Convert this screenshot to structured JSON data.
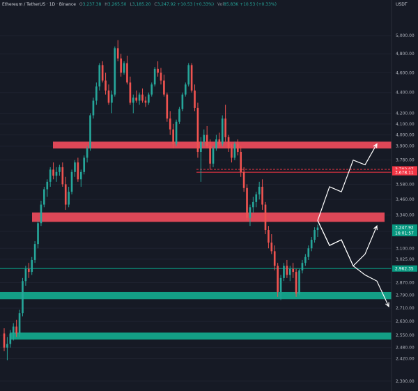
{
  "header": {
    "symbol": "Ethereum / TetherUS · 1D · Binance",
    "open_label": "O",
    "open_value": "3,237.38",
    "high_label": "H",
    "high_value": "3,265.50",
    "low_label": "L",
    "low_value": "3,185.20",
    "close_label": "C",
    "close_value": "3,247.92",
    "change": "+10.53 (+0.33%)",
    "volume_label": "Vol",
    "volume_value": "85.83K",
    "volume_change": "+10.53 (+0.33%)"
  },
  "chart_data": {
    "type": "candlestick",
    "currency": "USDT",
    "y_scale": "log",
    "ylim": [
      2260,
      5250
    ],
    "y_ticks": [
      "5,000.00",
      "4,800.00",
      "4,600.00",
      "4,400.00",
      "4,200.00",
      "4,100.00",
      "4,000.00",
      "3,900.00",
      "3,780.00",
      "3,580.00",
      "3,460.00",
      "3,340.00",
      "3,220.00",
      "3,100.00",
      "3,025.00",
      "2,870.00",
      "2,790.00",
      "2,710.00",
      "2,630.00",
      "2,550.00",
      "2,480.00",
      "2,420.00",
      "2,300.00"
    ],
    "y_tick_values": [
      5000,
      4800,
      4600,
      4400,
      4200,
      4100,
      4000,
      3900,
      3780,
      3580,
      3460,
      3340,
      3220,
      3100,
      3025,
      2870,
      2790,
      2710,
      2630,
      2550,
      2480,
      2420,
      2300
    ],
    "price_labels": [
      {
        "value": 3702.07,
        "text": "3,702.07",
        "color": "#f23645"
      },
      {
        "value": 3678.11,
        "text": "3,678.11",
        "color": "#f23645"
      },
      {
        "value": 3247.92,
        "text": "3,247.92",
        "color": "#089981"
      },
      {
        "value": 3247.92,
        "text": "16:01:57",
        "color": "#089981",
        "offset": 1
      },
      {
        "value": 2962.35,
        "text": "2,962.35",
        "color": "#089981"
      }
    ],
    "zones": [
      {
        "kind": "resistance",
        "from": 3880,
        "to": 3940,
        "color": "#e84a5a"
      },
      {
        "kind": "resistance",
        "from": 3290,
        "to": 3360,
        "color": "#e84a5a"
      },
      {
        "kind": "support",
        "from": 2765,
        "to": 2810,
        "color": "#13a58a"
      },
      {
        "kind": "support",
        "from": 2525,
        "to": 2565,
        "color": "#13a58a"
      }
    ],
    "levels": [
      {
        "value": 3702.07,
        "color": "#f23645",
        "dashed": true
      },
      {
        "value": 3678.11,
        "color": "#f23645",
        "dashed": false
      },
      {
        "value": 2962.35,
        "color": "#089981",
        "dashed": false
      }
    ],
    "colors": {
      "up": "#26a69a",
      "down": "#ef5350"
    },
    "candles": [
      [
        2560,
        2590,
        2460,
        2480
      ],
      [
        2480,
        2540,
        2410,
        2500
      ],
      [
        2500,
        2580,
        2480,
        2560
      ],
      [
        2560,
        2620,
        2520,
        2600
      ],
      [
        2600,
        2640,
        2540,
        2560
      ],
      [
        2560,
        2700,
        2540,
        2680
      ],
      [
        2680,
        2900,
        2660,
        2880
      ],
      [
        2880,
        2980,
        2850,
        2960
      ],
      [
        2960,
        3000,
        2900,
        2940
      ],
      [
        2940,
        3040,
        2920,
        3020
      ],
      [
        3020,
        3150,
        3000,
        3130
      ],
      [
        3130,
        3300,
        3100,
        3280
      ],
      [
        3280,
        3450,
        3260,
        3420
      ],
      [
        3420,
        3560,
        3400,
        3540
      ],
      [
        3540,
        3620,
        3480,
        3600
      ],
      [
        3600,
        3720,
        3560,
        3700
      ],
      [
        3700,
        3760,
        3620,
        3650
      ],
      [
        3650,
        3720,
        3600,
        3680
      ],
      [
        3680,
        3740,
        3650,
        3720
      ],
      [
        3720,
        3760,
        3560,
        3580
      ],
      [
        3580,
        3640,
        3380,
        3420
      ],
      [
        3420,
        3560,
        3400,
        3520
      ],
      [
        3520,
        3700,
        3500,
        3680
      ],
      [
        3680,
        3780,
        3640,
        3760
      ],
      [
        3760,
        3800,
        3600,
        3620
      ],
      [
        3620,
        3700,
        3560,
        3680
      ],
      [
        3680,
        3820,
        3660,
        3800
      ],
      [
        3800,
        3900,
        3760,
        3880
      ],
      [
        3880,
        4200,
        3860,
        4180
      ],
      [
        4180,
        4350,
        4150,
        4320
      ],
      [
        4320,
        4500,
        4280,
        4460
      ],
      [
        4460,
        4700,
        4420,
        4680
      ],
      [
        4680,
        4720,
        4500,
        4520
      ],
      [
        4520,
        4600,
        4380,
        4420
      ],
      [
        4420,
        4480,
        4280,
        4300
      ],
      [
        4300,
        4420,
        4200,
        4380
      ],
      [
        4380,
        4880,
        4360,
        4860
      ],
      [
        4860,
        4950,
        4720,
        4750
      ],
      [
        4750,
        4800,
        4560,
        4600
      ],
      [
        4600,
        4720,
        4580,
        4700
      ],
      [
        4700,
        4780,
        4480,
        4500
      ],
      [
        4500,
        4560,
        4280,
        4300
      ],
      [
        4300,
        4380,
        4200,
        4350
      ],
      [
        4350,
        4420,
        4300,
        4320
      ],
      [
        4320,
        4400,
        4280,
        4380
      ],
      [
        4380,
        4440,
        4300,
        4320
      ],
      [
        4320,
        4360,
        4260,
        4300
      ],
      [
        4300,
        4400,
        4280,
        4380
      ],
      [
        4380,
        4500,
        4360,
        4480
      ],
      [
        4480,
        4660,
        4460,
        4640
      ],
      [
        4640,
        4720,
        4560,
        4600
      ],
      [
        4600,
        4650,
        4480,
        4520
      ],
      [
        4520,
        4580,
        4360,
        4380
      ],
      [
        4380,
        4400,
        4120,
        4150
      ],
      [
        4150,
        4220,
        4000,
        4050
      ],
      [
        4050,
        4100,
        3880,
        3920
      ],
      [
        3920,
        4140,
        3900,
        4120
      ],
      [
        4120,
        4260,
        4100,
        4240
      ],
      [
        4240,
        4400,
        4220,
        4380
      ],
      [
        4380,
        4500,
        4360,
        4480
      ],
      [
        4480,
        4700,
        4460,
        4680
      ],
      [
        4680,
        4700,
        4400,
        4420
      ],
      [
        4420,
        4480,
        4220,
        4250
      ],
      [
        4250,
        4300,
        3800,
        3850
      ],
      [
        3850,
        3980,
        3600,
        3940
      ],
      [
        3940,
        4050,
        3900,
        4000
      ],
      [
        4000,
        4080,
        3880,
        3900
      ],
      [
        3900,
        3960,
        3700,
        3750
      ],
      [
        3750,
        3900,
        3720,
        3880
      ],
      [
        3880,
        4000,
        3860,
        3960
      ],
      [
        3960,
        4020,
        3900,
        3920
      ],
      [
        3920,
        4180,
        3900,
        4150
      ],
      [
        4150,
        4280,
        3940,
        3980
      ],
      [
        3980,
        4000,
        3850,
        3880
      ],
      [
        3880,
        3920,
        3760,
        3800
      ],
      [
        3800,
        3940,
        3780,
        3920
      ],
      [
        3920,
        3960,
        3820,
        3850
      ],
      [
        3850,
        3900,
        3640,
        3680
      ],
      [
        3680,
        3720,
        3520,
        3550
      ],
      [
        3550,
        3580,
        3300,
        3320
      ],
      [
        3320,
        3420,
        3260,
        3400
      ],
      [
        3400,
        3480,
        3360,
        3440
      ],
      [
        3440,
        3520,
        3400,
        3500
      ],
      [
        3500,
        3600,
        3460,
        3560
      ],
      [
        3560,
        3620,
        3380,
        3420
      ],
      [
        3420,
        3440,
        3200,
        3230
      ],
      [
        3230,
        3260,
        3100,
        3140
      ],
      [
        3140,
        3200,
        3060,
        3080
      ],
      [
        3080,
        3120,
        2950,
        2980
      ],
      [
        2980,
        3000,
        2780,
        2810
      ],
      [
        2810,
        2920,
        2760,
        2900
      ],
      [
        2900,
        3000,
        2880,
        2980
      ],
      [
        2980,
        3020,
        2900,
        2920
      ],
      [
        2920,
        2980,
        2880,
        2960
      ],
      [
        2960,
        3000,
        2900,
        2940
      ],
      [
        2940,
        2960,
        2780,
        2800
      ],
      [
        2800,
        2960,
        2790,
        2950
      ],
      [
        2950,
        3020,
        2930,
        3000
      ],
      [
        3000,
        3060,
        2980,
        3040
      ],
      [
        3040,
        3120,
        3020,
        3100
      ],
      [
        3100,
        3180,
        3080,
        3160
      ],
      [
        3160,
        3250,
        3140,
        3230
      ],
      [
        3230,
        3270,
        3180,
        3248
      ]
    ],
    "projections": [
      {
        "kind": "bullish",
        "path": [
          [
            3300,
            0
          ],
          [
            3560,
            1
          ],
          [
            3520,
            2
          ],
          [
            3780,
            3
          ],
          [
            3740,
            4
          ],
          [
            3920,
            5
          ]
        ]
      },
      {
        "kind": "bullish",
        "path": [
          [
            3300,
            0
          ],
          [
            3120,
            1
          ],
          [
            3160,
            2
          ],
          [
            2980,
            3
          ],
          [
            3060,
            4
          ],
          [
            3260,
            5
          ]
        ]
      },
      {
        "kind": "bearish",
        "path": [
          [
            3300,
            0
          ],
          [
            3120,
            1
          ],
          [
            3160,
            2
          ],
          [
            2980,
            3
          ],
          [
            2920,
            4
          ],
          [
            2880,
            5
          ],
          [
            2720,
            6
          ]
        ]
      }
    ]
  }
}
